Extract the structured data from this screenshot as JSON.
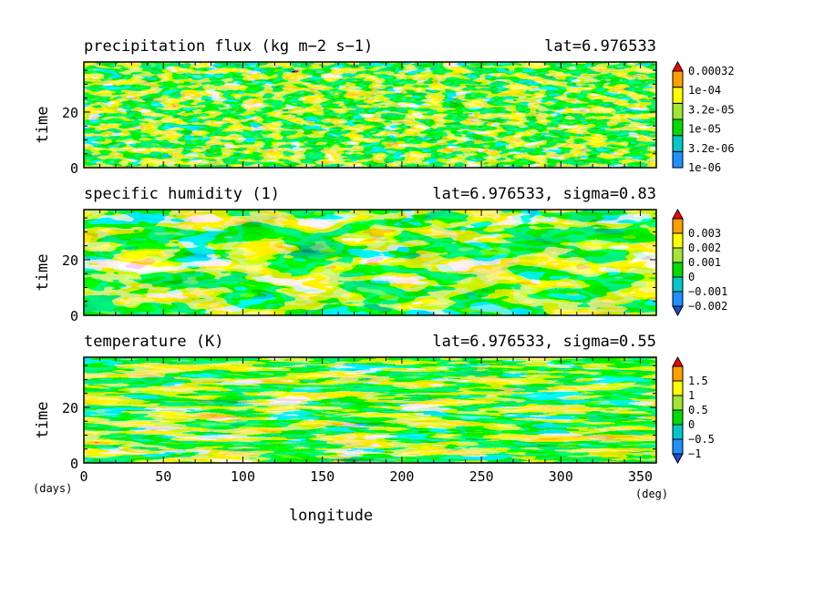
{
  "chart_data": [
    {
      "type": "heatmap",
      "title": "precipitation flux (kg m−2 s−1)",
      "subtitle": "lat=6.976533",
      "ylabel": "time",
      "xlim": [
        0,
        360
      ],
      "ylim": [
        0,
        38
      ],
      "x_ticks": [
        "0",
        "50",
        "100",
        "150",
        "200",
        "250",
        "300",
        "350"
      ],
      "y_ticks": [
        "0",
        "20"
      ],
      "colorbar": {
        "labels": [
          "0.00032",
          "1e-04",
          "3.2e-05",
          "1e-05",
          "3.2e-06",
          "1e-06"
        ],
        "colors": [
          "#1e90ff",
          "#00c8c8",
          "#00dc00",
          "#a0e632",
          "#ffff00",
          "#ffa000",
          "#ff0000"
        ],
        "extend": "max"
      }
    },
    {
      "type": "heatmap",
      "title": "specific humidity (1)",
      "subtitle": "lat=6.976533, sigma=0.83",
      "ylabel": "time",
      "xlim": [
        0,
        360
      ],
      "ylim": [
        0,
        38
      ],
      "x_ticks": [
        "0",
        "50",
        "100",
        "150",
        "200",
        "250",
        "300",
        "350"
      ],
      "y_ticks": [
        "0",
        "20"
      ],
      "colorbar": {
        "labels": [
          "0.003",
          "0.002",
          "0.001",
          "0",
          "−0.001",
          "−0.002"
        ],
        "colors": [
          "#1e4bd2",
          "#1e90ff",
          "#00c8c8",
          "#00dc00",
          "#a0e632",
          "#ffff00",
          "#ffa000",
          "#ff0000"
        ],
        "extend": "both"
      }
    },
    {
      "type": "heatmap",
      "title": "temperature (K)",
      "subtitle": "lat=6.976533, sigma=0.55",
      "ylabel": "time",
      "xlabel": "longitude",
      "xlim": [
        0,
        360
      ],
      "ylim": [
        0,
        38
      ],
      "x_ticks": [
        "0",
        "50",
        "100",
        "150",
        "200",
        "250",
        "300",
        "350"
      ],
      "y_ticks": [
        "0",
        "20"
      ],
      "x_unit": "(deg)",
      "y_unit": "(days)",
      "colorbar": {
        "labels": [
          "1.5",
          "1",
          "0.5",
          "0",
          "−0.5",
          "−1"
        ],
        "colors": [
          "#1e4bd2",
          "#1e90ff",
          "#00c8c8",
          "#00dc00",
          "#a0e632",
          "#ffff00",
          "#ffa000",
          "#ff0000"
        ],
        "extend": "both"
      }
    }
  ]
}
